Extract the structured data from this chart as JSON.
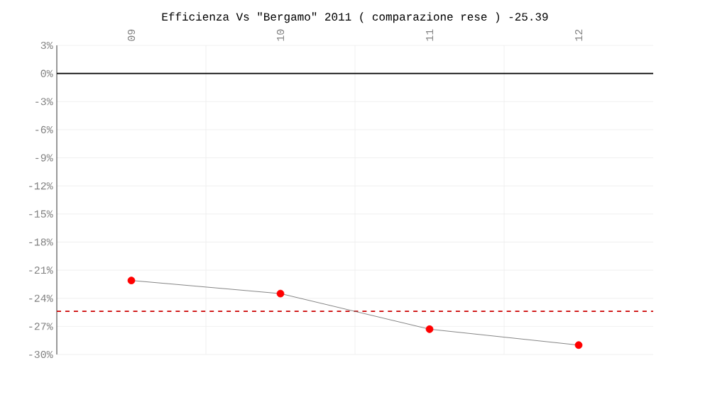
{
  "chart_data": {
    "type": "line",
    "title": "Efficienza Vs \"Bergamo\" 2011 ( comparazione rese ) -25.39",
    "categories": [
      "09",
      "10",
      "11",
      "12"
    ],
    "series": [
      {
        "color": "#ff0000",
        "values": [
          -22.1,
          -23.5,
          -27.3,
          -29.0
        ]
      }
    ],
    "marker": "circle",
    "ylim": [
      -30,
      3
    ],
    "yticks": [
      {
        "value": -30,
        "label": "-30%"
      },
      {
        "value": -27,
        "label": "-27%"
      },
      {
        "value": -24,
        "label": "-24%"
      },
      {
        "value": -21,
        "label": "-21%"
      },
      {
        "value": -18,
        "label": "-18%"
      },
      {
        "value": -15,
        "label": "-15%"
      },
      {
        "value": -12,
        "label": "-12%"
      },
      {
        "value": -9,
        "label": "-9%"
      },
      {
        "value": -6,
        "label": "-6%"
      },
      {
        "value": -3,
        "label": "-3%"
      },
      {
        "value": 0,
        "label": "0%"
      },
      {
        "value": 3,
        "label": "3%"
      }
    ],
    "grid": true,
    "ref_lines": [
      {
        "axis": "y",
        "value": 0,
        "color": "#000000",
        "line_style": "solid"
      },
      {
        "axis": "y",
        "value": -25.39,
        "color": "#cc0000",
        "line_style": "dashed"
      }
    ]
  }
}
